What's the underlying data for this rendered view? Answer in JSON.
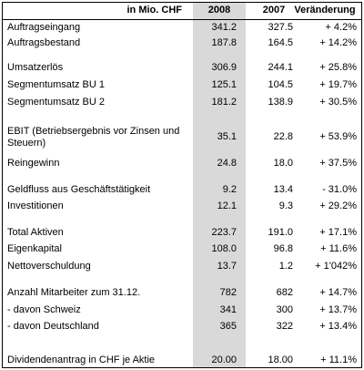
{
  "header": [
    "in Mio. CHF",
    "2008",
    "2007",
    "Veränderung"
  ],
  "rows": [
    [
      "Auftragseingang",
      "341.2",
      "327.5",
      "+ 4.2%"
    ],
    [
      "Auftragsbestand",
      "187.8",
      "164.5",
      "+ 14.2%"
    ],
    [
      "Umsatzerlös",
      "306.9",
      "244.1",
      "+ 25.8%"
    ],
    [
      "Segmentumsatz BU 1",
      "125.1",
      "104.5",
      "+ 19.7%"
    ],
    [
      "Segmentumsatz BU 2",
      "181.2",
      "138.9",
      "+ 30.5%"
    ],
    [
      "EBIT (Betriebsergebnis vor Zinsen und Steuern)",
      "35.1",
      "22.8",
      "+ 53.9%"
    ],
    [
      "Reingewinn",
      "24.8",
      "18.0",
      "+ 37.5%"
    ],
    [
      "Geldfluss aus Geschäftstätigkeit",
      "9.2",
      "13.4",
      "- 31.0%"
    ],
    [
      "Investitionen",
      "12.1",
      "9.3",
      "+ 29.2%"
    ],
    [
      "Total Aktiven",
      "223.7",
      "191.0",
      "+ 17.1%"
    ],
    [
      "Eigenkapital",
      "108.0",
      "96.8",
      "+ 11.6%"
    ],
    [
      "Nettoverschuldung",
      "13.7",
      "1.2",
      "+ 1'042%"
    ],
    [
      "Anzahl Mitarbeiter zum 31.12.",
      "782",
      "682",
      "+ 14.7%"
    ],
    [
      "- davon Schweiz",
      "341",
      "300",
      "+ 13.7%"
    ],
    [
      "- davon Deutschland",
      "365",
      "322",
      "+ 13.4%"
    ],
    [
      "Dividendenantrag in CHF je Aktie",
      "20.00",
      "18.00",
      "+ 11.1%"
    ]
  ]
}
